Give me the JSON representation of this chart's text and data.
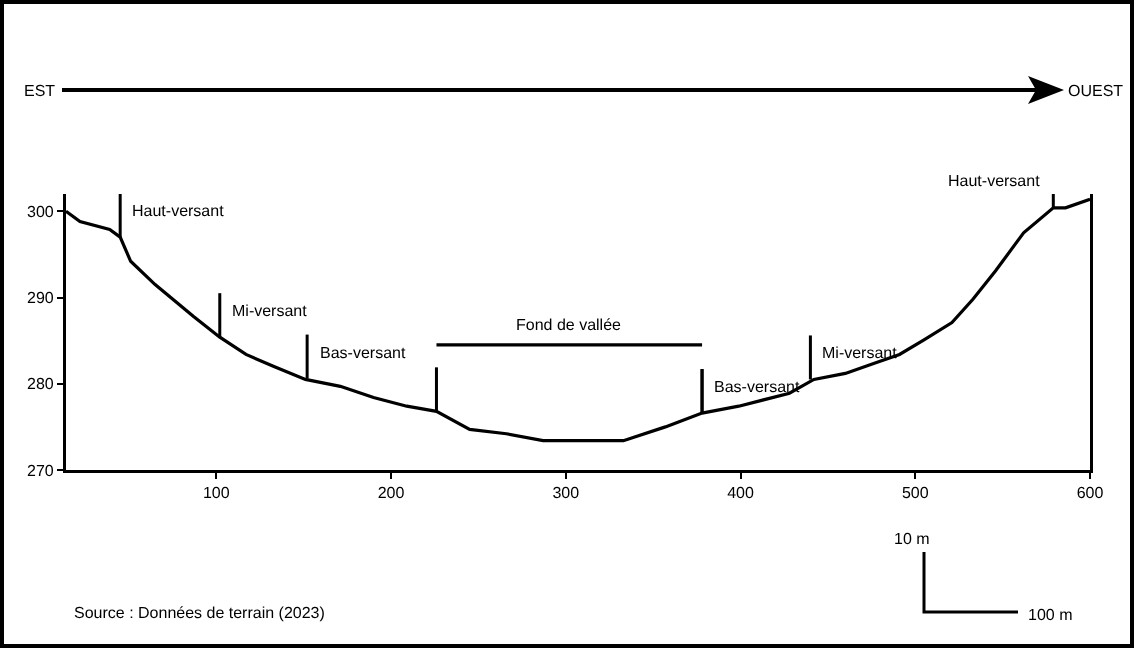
{
  "chart_data": {
    "type": "line",
    "line_style": "solid",
    "series": [
      {
        "color": "#000000",
        "x": [
          14,
          22,
          39,
          45,
          51,
          65,
          87,
          102,
          117,
          133,
          151,
          171,
          190,
          209,
          226,
          245,
          266,
          287,
          308,
          333,
          357,
          378,
          399,
          428,
          442,
          460,
          477,
          491,
          505,
          521,
          533,
          546,
          562,
          579,
          586,
          600
        ],
        "values": [
          300,
          298.8,
          297.9,
          297,
          294.2,
          291.5,
          287.8,
          285.4,
          283.4,
          282,
          280.5,
          279.7,
          278.4,
          277.4,
          276.8,
          274.7,
          274.2,
          273.4,
          273.4,
          273.4,
          275,
          276.6,
          277.4,
          278.9,
          280.5,
          281.2,
          282.4,
          283.4,
          285.1,
          287.1,
          289.8,
          293.1,
          297.5,
          300.4,
          300.4,
          301.4
        ]
      },
      {
        "color": "#000000",
        "x": [
          226,
          378
        ],
        "values": [
          284.5,
          284.5
        ]
      }
    ],
    "xlim": [
      14,
      600
    ],
    "ylim": [
      270,
      302
    ],
    "xticks": [
      100,
      200,
      300,
      400,
      500,
      600
    ],
    "yticks": [
      270,
      280,
      290,
      300
    ],
    "annotations": [
      "EST",
      "OUEST",
      {
        "text": "Fond de vallée",
        "x": 302,
        "y": 284.5
      },
      {
        "text": "Haut-versant",
        "x": 45,
        "y": 297
      },
      {
        "text": "Mi-versant",
        "x": 102,
        "y": 285.4
      },
      {
        "text": "Bas-versant",
        "x": 152,
        "y": 280.6
      },
      {
        "text": "Bas-versant",
        "x": 378,
        "y": 276.6
      },
      {
        "text": "Mi-versant",
        "x": 440,
        "y": 280.5
      },
      {
        "text": "Haut-versant",
        "x": 579,
        "y": 300.4
      },
      "Source : Données de terrain (2023)",
      "10 m",
      "100 m"
    ]
  }
}
